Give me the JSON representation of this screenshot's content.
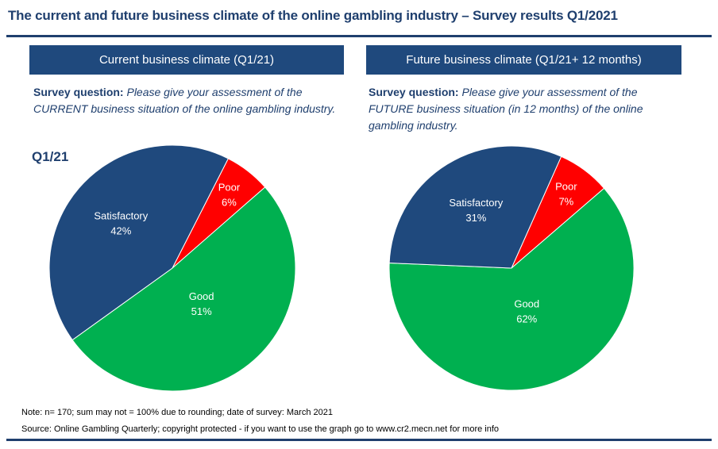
{
  "title": "The current and future business climate of the online gambling industry – Survey results Q1/2021",
  "panels": [
    {
      "header": "Current business climate (Q1/21)",
      "question_label": "Survey question:",
      "question_text": "Please give your assessment of the CURRENT business situation of the online gambling industry."
    },
    {
      "header": "Future business climate (Q1/21+ 12 months)",
      "question_label": "Survey question:",
      "question_text": "Please give your assessment of the FUTURE business situation (in 12 months) of the online gambling industry."
    }
  ],
  "period_label": "Q1/21",
  "note": "Note: n= 170; sum may not = 100% due to rounding; date of survey: March 2021",
  "source": "Source: Online Gambling Quarterly; copyright protected - if you want to use the graph go to www.cr2.mecn.net for more info",
  "colors": {
    "Poor": "#ff0000",
    "Good": "#00b050",
    "Satisfactory": "#1f497d",
    "accent": "#1f3f6e"
  },
  "chart_data": [
    {
      "type": "pie",
      "title": "Current business climate (Q1/21)",
      "categories": [
        "Poor",
        "Good",
        "Satisfactory"
      ],
      "values": [
        6,
        51,
        42
      ],
      "labels": [
        "6%",
        "51%",
        "42%"
      ]
    },
    {
      "type": "pie",
      "title": "Future business climate (Q1/21+ 12 months)",
      "categories": [
        "Poor",
        "Good",
        "Satisfactory"
      ],
      "values": [
        7,
        62,
        31
      ],
      "labels": [
        "7%",
        "62%",
        "31%"
      ]
    }
  ]
}
